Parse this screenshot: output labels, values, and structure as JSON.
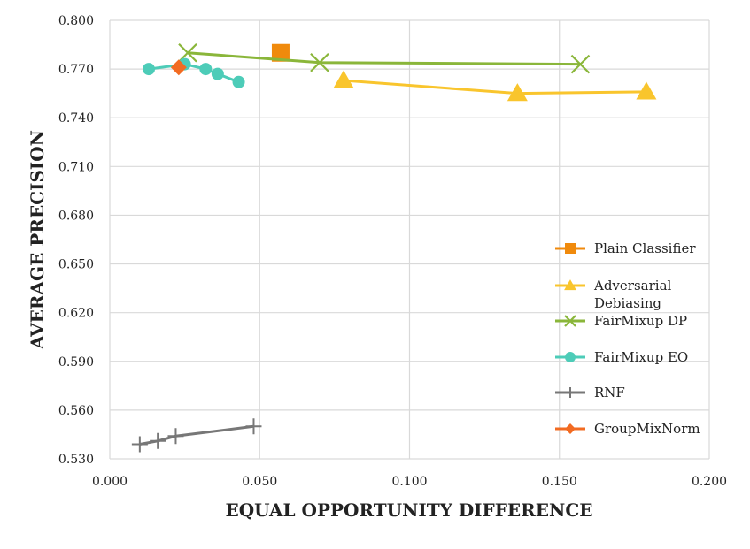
{
  "chart_data": {
    "type": "scatter",
    "xlabel": "EQUAL OPPORTUNITY DIFFERENCE",
    "ylabel": "AVERAGE PRECISION",
    "xlim": [
      0.0,
      0.2
    ],
    "ylim": [
      0.53,
      0.8
    ],
    "x_ticks": [
      "0.000",
      "0.050",
      "0.100",
      "0.150",
      "0.200"
    ],
    "y_ticks": [
      "0.530",
      "0.560",
      "0.590",
      "0.620",
      "0.650",
      "0.680",
      "0.710",
      "0.740",
      "0.770",
      "0.800"
    ],
    "grid": true,
    "legend_placement": "right",
    "series": [
      {
        "name": "Plain Classifier",
        "color": "#F08A0C",
        "marker": "square",
        "points": [
          [
            0.057,
            0.78
          ]
        ]
      },
      {
        "name": "Adversarial Debiasing",
        "color": "#F9C52D",
        "marker": "triangle",
        "points": [
          [
            0.078,
            0.763
          ],
          [
            0.136,
            0.755
          ],
          [
            0.179,
            0.756
          ]
        ]
      },
      {
        "name": "FairMixup DP",
        "color": "#8AB63A",
        "marker": "x",
        "points": [
          [
            0.026,
            0.78
          ],
          [
            0.07,
            0.774
          ],
          [
            0.157,
            0.773
          ]
        ]
      },
      {
        "name": "FairMixup EO",
        "color": "#4DCCB8",
        "marker": "circle",
        "points": [
          [
            0.013,
            0.77
          ],
          [
            0.025,
            0.773
          ],
          [
            0.032,
            0.77
          ],
          [
            0.036,
            0.767
          ],
          [
            0.043,
            0.762
          ]
        ]
      },
      {
        "name": "RNF",
        "color": "#777777",
        "marker": "plus",
        "points": [
          [
            0.01,
            0.539
          ],
          [
            0.016,
            0.541
          ],
          [
            0.022,
            0.544
          ],
          [
            0.048,
            0.55
          ]
        ]
      },
      {
        "name": "GroupMixNorm",
        "color": "#F26B22",
        "marker": "diamond",
        "points": [
          [
            0.023,
            0.771
          ]
        ]
      }
    ]
  }
}
